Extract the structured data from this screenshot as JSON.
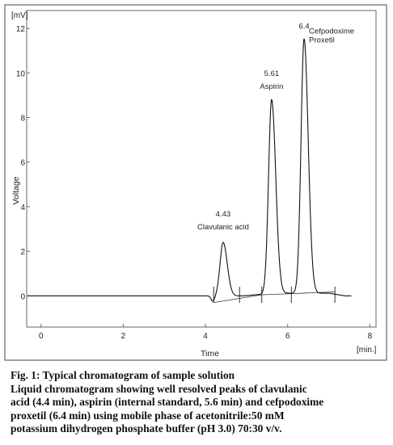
{
  "chart_data": {
    "type": "line",
    "xlabel": "Time",
    "ylabel": "Voltage",
    "x_unit": "[min.]",
    "y_unit": "[mV]",
    "xlim": [
      -0.35,
      8.15
    ],
    "ylim": [
      -1.4,
      12.8
    ],
    "x_ticks": [
      0,
      2,
      4,
      6,
      8
    ],
    "y_ticks": [
      0,
      2,
      4,
      6,
      8,
      10,
      12
    ],
    "x_tick_labels": [
      "0",
      "2",
      "4",
      "6",
      "8"
    ],
    "y_tick_labels": [
      "0",
      "2",
      "4",
      "6",
      "8",
      "10",
      "12"
    ],
    "grid": false,
    "baseline": 0,
    "peaks": [
      {
        "rt": 4.43,
        "height": 2.4,
        "rt_label": "4.43",
        "name": "Clavulanic acid"
      },
      {
        "rt": 5.61,
        "height": 8.7,
        "rt_label": "5.61",
        "name": "Aspirin"
      },
      {
        "rt": 6.4,
        "height": 11.4,
        "rt_label": "6.4",
        "name": "Cefpodoxime Proxetil"
      }
    ],
    "integration_markers": [
      4.2,
      4.83,
      5.37,
      6.09,
      7.15
    ]
  },
  "caption": {
    "title": "Fig. 1: Typical chromatogram of sample solution",
    "lines": [
      "Liquid chromatogram showing well resolved peaks of clavulanic",
      "acid (4.4 min), aspirin (internal standard, 5.6 min) and cefpodoxime",
      "proxetil (6.4 min) using mobile phase of acetonitrile:50 mM",
      "potassium dihydrogen phosphate buffer (pH 3.0) 70:30 v/v."
    ]
  }
}
